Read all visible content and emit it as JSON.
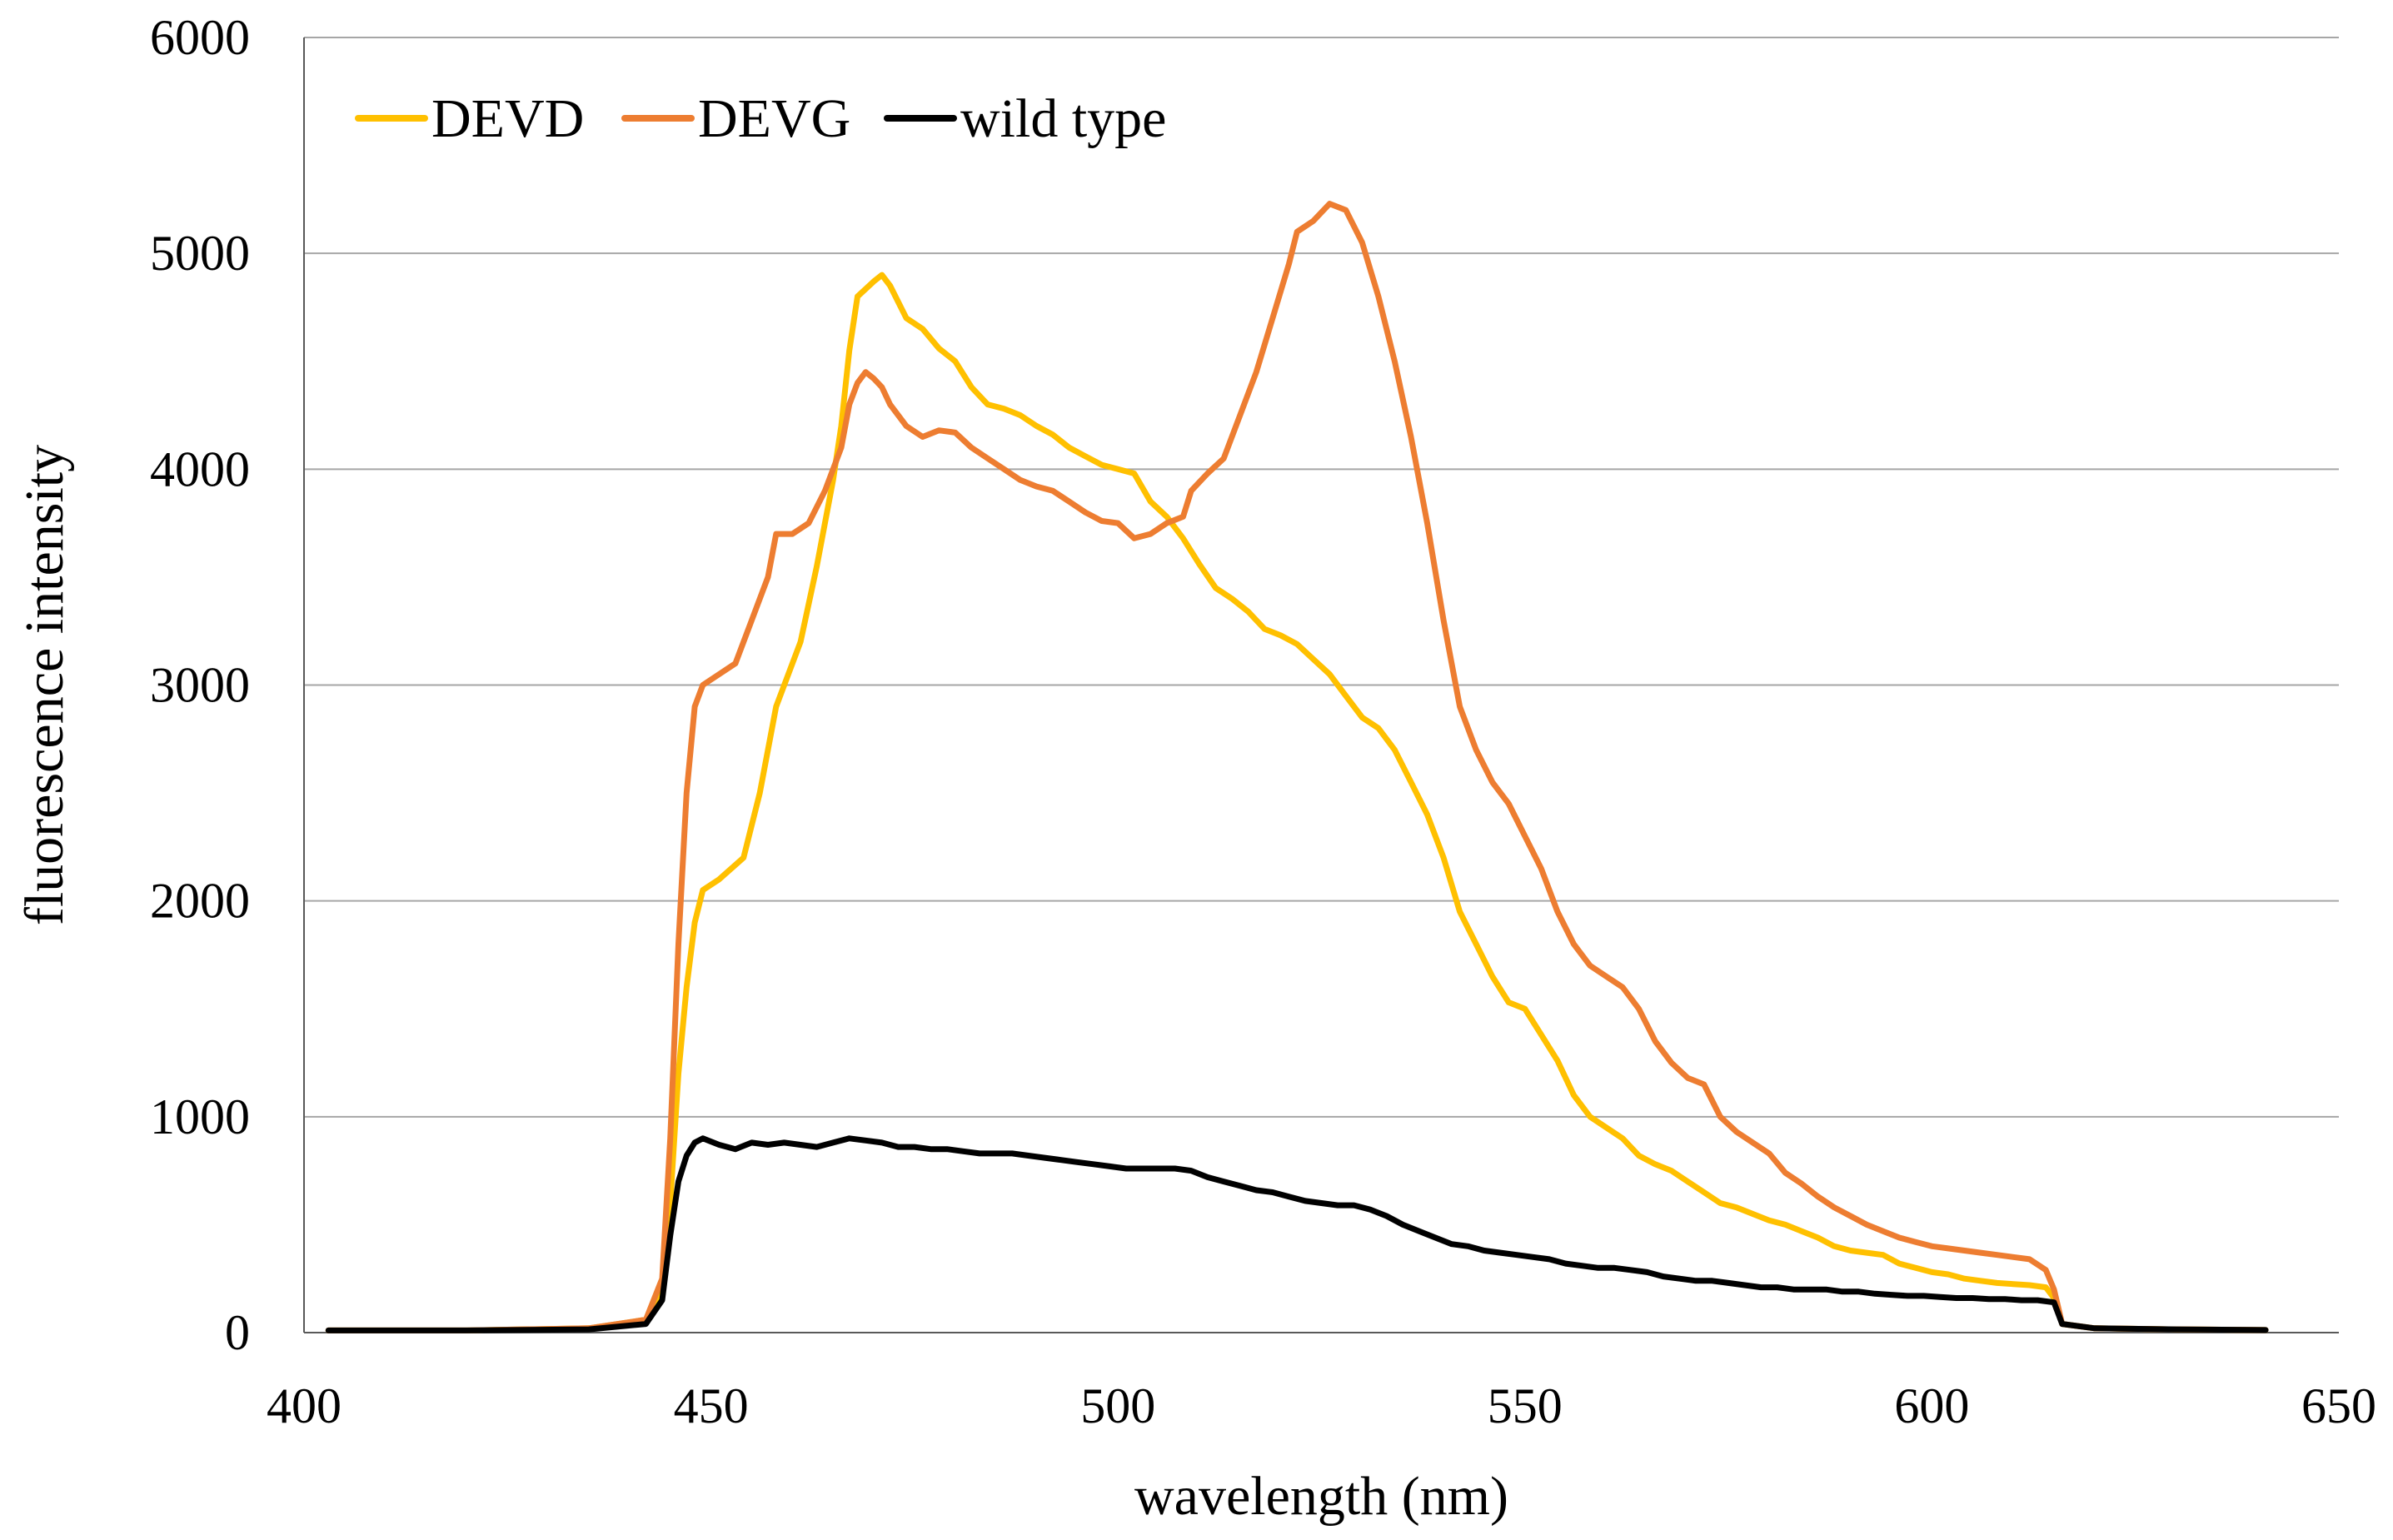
{
  "chart_data": {
    "type": "line",
    "title": "",
    "xlabel": "wavelength (nm)",
    "ylabel": "fluorescence intensity",
    "xlim": [
      400,
      650
    ],
    "ylim": [
      0,
      6000
    ],
    "x_ticks": [
      400,
      450,
      500,
      550,
      600,
      650
    ],
    "y_ticks": [
      0,
      1000,
      2000,
      3000,
      4000,
      5000,
      6000
    ],
    "grid": "horizontal",
    "legend_position": "top-left",
    "series": [
      {
        "name": "DEVD",
        "color": "#FFC000",
        "points": [
          [
            403,
            10
          ],
          [
            420,
            10
          ],
          [
            435,
            20
          ],
          [
            442,
            60
          ],
          [
            444,
            200
          ],
          [
            445,
            600
          ],
          [
            446,
            1200
          ],
          [
            447,
            1600
          ],
          [
            448,
            1900
          ],
          [
            449,
            2050
          ],
          [
            451,
            2100
          ],
          [
            454,
            2200
          ],
          [
            456,
            2500
          ],
          [
            458,
            2900
          ],
          [
            461,
            3200
          ],
          [
            463,
            3550
          ],
          [
            465,
            3950
          ],
          [
            466,
            4200
          ],
          [
            467,
            4550
          ],
          [
            468,
            4800
          ],
          [
            470,
            4870
          ],
          [
            471,
            4900
          ],
          [
            472,
            4850
          ],
          [
            474,
            4700
          ],
          [
            476,
            4650
          ],
          [
            478,
            4560
          ],
          [
            480,
            4500
          ],
          [
            482,
            4380
          ],
          [
            484,
            4300
          ],
          [
            486,
            4280
          ],
          [
            488,
            4250
          ],
          [
            490,
            4200
          ],
          [
            492,
            4160
          ],
          [
            494,
            4100
          ],
          [
            496,
            4060
          ],
          [
            498,
            4020
          ],
          [
            500,
            4000
          ],
          [
            502,
            3980
          ],
          [
            504,
            3850
          ],
          [
            506,
            3780
          ],
          [
            508,
            3680
          ],
          [
            510,
            3560
          ],
          [
            512,
            3450
          ],
          [
            514,
            3400
          ],
          [
            516,
            3340
          ],
          [
            518,
            3260
          ],
          [
            520,
            3230
          ],
          [
            522,
            3190
          ],
          [
            524,
            3120
          ],
          [
            526,
            3050
          ],
          [
            528,
            2950
          ],
          [
            530,
            2850
          ],
          [
            532,
            2800
          ],
          [
            534,
            2700
          ],
          [
            536,
            2550
          ],
          [
            538,
            2400
          ],
          [
            540,
            2200
          ],
          [
            542,
            1950
          ],
          [
            544,
            1800
          ],
          [
            546,
            1650
          ],
          [
            548,
            1530
          ],
          [
            550,
            1500
          ],
          [
            552,
            1380
          ],
          [
            554,
            1260
          ],
          [
            556,
            1100
          ],
          [
            558,
            1000
          ],
          [
            560,
            950
          ],
          [
            562,
            900
          ],
          [
            564,
            820
          ],
          [
            566,
            780
          ],
          [
            568,
            750
          ],
          [
            570,
            700
          ],
          [
            572,
            650
          ],
          [
            574,
            600
          ],
          [
            576,
            580
          ],
          [
            578,
            550
          ],
          [
            580,
            520
          ],
          [
            582,
            500
          ],
          [
            584,
            470
          ],
          [
            586,
            440
          ],
          [
            588,
            400
          ],
          [
            590,
            380
          ],
          [
            592,
            370
          ],
          [
            594,
            360
          ],
          [
            596,
            320
          ],
          [
            598,
            300
          ],
          [
            600,
            280
          ],
          [
            602,
            270
          ],
          [
            604,
            250
          ],
          [
            606,
            240
          ],
          [
            608,
            230
          ],
          [
            610,
            225
          ],
          [
            612,
            220
          ],
          [
            614,
            210
          ],
          [
            615,
            160
          ],
          [
            616,
            40
          ],
          [
            620,
            20
          ],
          [
            630,
            15
          ],
          [
            641,
            12
          ]
        ]
      },
      {
        "name": "DEVG",
        "color": "#ED7D31",
        "points": [
          [
            403,
            10
          ],
          [
            420,
            10
          ],
          [
            435,
            20
          ],
          [
            442,
            60
          ],
          [
            444,
            250
          ],
          [
            445,
            900
          ],
          [
            446,
            1800
          ],
          [
            447,
            2500
          ],
          [
            448,
            2900
          ],
          [
            449,
            3000
          ],
          [
            451,
            3050
          ],
          [
            453,
            3100
          ],
          [
            455,
            3300
          ],
          [
            457,
            3500
          ],
          [
            458,
            3700
          ],
          [
            460,
            3700
          ],
          [
            462,
            3750
          ],
          [
            464,
            3900
          ],
          [
            466,
            4100
          ],
          [
            467,
            4300
          ],
          [
            468,
            4400
          ],
          [
            469,
            4450
          ],
          [
            470,
            4420
          ],
          [
            471,
            4380
          ],
          [
            472,
            4300
          ],
          [
            474,
            4200
          ],
          [
            476,
            4150
          ],
          [
            478,
            4180
          ],
          [
            480,
            4170
          ],
          [
            482,
            4100
          ],
          [
            484,
            4050
          ],
          [
            486,
            4000
          ],
          [
            488,
            3950
          ],
          [
            490,
            3920
          ],
          [
            492,
            3900
          ],
          [
            494,
            3850
          ],
          [
            496,
            3800
          ],
          [
            498,
            3760
          ],
          [
            500,
            3750
          ],
          [
            502,
            3680
          ],
          [
            504,
            3700
          ],
          [
            506,
            3750
          ],
          [
            508,
            3780
          ],
          [
            509,
            3900
          ],
          [
            511,
            3980
          ],
          [
            513,
            4050
          ],
          [
            515,
            4250
          ],
          [
            517,
            4450
          ],
          [
            519,
            4700
          ],
          [
            521,
            4950
          ],
          [
            522,
            5100
          ],
          [
            524,
            5150
          ],
          [
            526,
            5230
          ],
          [
            528,
            5200
          ],
          [
            530,
            5050
          ],
          [
            532,
            4800
          ],
          [
            534,
            4500
          ],
          [
            536,
            4150
          ],
          [
            538,
            3750
          ],
          [
            540,
            3300
          ],
          [
            542,
            2900
          ],
          [
            544,
            2700
          ],
          [
            546,
            2550
          ],
          [
            548,
            2450
          ],
          [
            550,
            2300
          ],
          [
            552,
            2150
          ],
          [
            554,
            1950
          ],
          [
            556,
            1800
          ],
          [
            558,
            1700
          ],
          [
            560,
            1650
          ],
          [
            562,
            1600
          ],
          [
            564,
            1500
          ],
          [
            566,
            1350
          ],
          [
            568,
            1250
          ],
          [
            570,
            1180
          ],
          [
            572,
            1150
          ],
          [
            574,
            1000
          ],
          [
            576,
            930
          ],
          [
            578,
            880
          ],
          [
            580,
            830
          ],
          [
            582,
            740
          ],
          [
            584,
            690
          ],
          [
            586,
            630
          ],
          [
            588,
            580
          ],
          [
            590,
            540
          ],
          [
            592,
            500
          ],
          [
            594,
            470
          ],
          [
            596,
            440
          ],
          [
            598,
            420
          ],
          [
            600,
            400
          ],
          [
            602,
            390
          ],
          [
            604,
            380
          ],
          [
            606,
            370
          ],
          [
            608,
            360
          ],
          [
            610,
            350
          ],
          [
            612,
            340
          ],
          [
            614,
            290
          ],
          [
            615,
            200
          ],
          [
            616,
            40
          ],
          [
            620,
            20
          ],
          [
            630,
            15
          ],
          [
            641,
            12
          ]
        ]
      },
      {
        "name": "wild type",
        "color": "#000000",
        "points": [
          [
            403,
            10
          ],
          [
            420,
            10
          ],
          [
            435,
            15
          ],
          [
            442,
            40
          ],
          [
            444,
            150
          ],
          [
            445,
            450
          ],
          [
            446,
            700
          ],
          [
            447,
            820
          ],
          [
            448,
            880
          ],
          [
            449,
            900
          ],
          [
            451,
            870
          ],
          [
            453,
            850
          ],
          [
            455,
            880
          ],
          [
            457,
            870
          ],
          [
            459,
            880
          ],
          [
            461,
            870
          ],
          [
            463,
            860
          ],
          [
            465,
            880
          ],
          [
            467,
            900
          ],
          [
            469,
            890
          ],
          [
            471,
            880
          ],
          [
            473,
            860
          ],
          [
            475,
            860
          ],
          [
            477,
            850
          ],
          [
            479,
            850
          ],
          [
            481,
            840
          ],
          [
            483,
            830
          ],
          [
            485,
            830
          ],
          [
            487,
            830
          ],
          [
            489,
            820
          ],
          [
            491,
            810
          ],
          [
            493,
            800
          ],
          [
            495,
            790
          ],
          [
            497,
            780
          ],
          [
            499,
            770
          ],
          [
            501,
            760
          ],
          [
            503,
            760
          ],
          [
            505,
            760
          ],
          [
            507,
            760
          ],
          [
            509,
            750
          ],
          [
            511,
            720
          ],
          [
            513,
            700
          ],
          [
            515,
            680
          ],
          [
            517,
            660
          ],
          [
            519,
            650
          ],
          [
            521,
            630
          ],
          [
            523,
            610
          ],
          [
            525,
            600
          ],
          [
            527,
            590
          ],
          [
            529,
            590
          ],
          [
            531,
            570
          ],
          [
            533,
            540
          ],
          [
            535,
            500
          ],
          [
            537,
            470
          ],
          [
            539,
            440
          ],
          [
            541,
            410
          ],
          [
            543,
            400
          ],
          [
            545,
            380
          ],
          [
            547,
            370
          ],
          [
            549,
            360
          ],
          [
            551,
            350
          ],
          [
            553,
            340
          ],
          [
            555,
            320
          ],
          [
            557,
            310
          ],
          [
            559,
            300
          ],
          [
            561,
            300
          ],
          [
            563,
            290
          ],
          [
            565,
            280
          ],
          [
            567,
            260
          ],
          [
            569,
            250
          ],
          [
            571,
            240
          ],
          [
            573,
            240
          ],
          [
            575,
            230
          ],
          [
            577,
            220
          ],
          [
            579,
            210
          ],
          [
            581,
            210
          ],
          [
            583,
            200
          ],
          [
            585,
            200
          ],
          [
            587,
            200
          ],
          [
            589,
            190
          ],
          [
            591,
            190
          ],
          [
            593,
            180
          ],
          [
            595,
            175
          ],
          [
            597,
            170
          ],
          [
            599,
            170
          ],
          [
            601,
            165
          ],
          [
            603,
            160
          ],
          [
            605,
            160
          ],
          [
            607,
            155
          ],
          [
            609,
            155
          ],
          [
            611,
            150
          ],
          [
            613,
            150
          ],
          [
            615,
            140
          ],
          [
            616,
            40
          ],
          [
            620,
            20
          ],
          [
            630,
            15
          ],
          [
            641,
            12
          ]
        ]
      }
    ]
  }
}
